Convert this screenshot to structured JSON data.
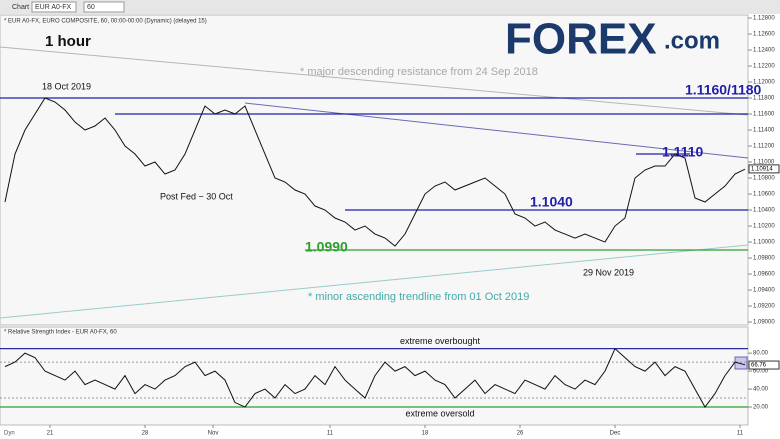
{
  "toolbar": {
    "tab": "Chart",
    "symbol": "EUR A0-FX",
    "interval": "60",
    "corner": "Dyn"
  },
  "logo": "FOREX",
  "logo_suffix": ".com",
  "chart_data": [
    {
      "type": "line",
      "title": "* EUR A0-FX, EURO COMPOSITE, 60, 00:00-00:00 (Dynamic) (delayed 15)",
      "timeframe": "1 hour",
      "annotations": [
        "18 Oct 2019",
        "Post Fed ~ 30 Oct",
        "* major descending resistance from 24 Sep 2018",
        "* minor ascending trendline from 01 Oct 2019",
        "29 Nov 2019"
      ],
      "series": [
        {
          "color": "#111111",
          "values": [
            1.105,
            1.111,
            1.114,
            1.116,
            1.118,
            1.1175,
            1.1165,
            1.115,
            1.114,
            1.1145,
            1.1155,
            1.114,
            1.112,
            1.111,
            1.1095,
            1.11,
            1.1085,
            1.109,
            1.111,
            1.114,
            1.117,
            1.116,
            1.1165,
            1.116,
            1.117,
            1.114,
            1.111,
            1.108,
            1.1075,
            1.1065,
            1.106,
            1.1045,
            1.104,
            1.103,
            1.1025,
            1.1015,
            1.102,
            1.101,
            1.1005,
            1.0995,
            1.101,
            1.1035,
            1.106,
            1.107,
            1.1075,
            1.1065,
            1.107,
            1.1075,
            1.108,
            1.107,
            1.106,
            1.1035,
            1.103,
            1.102,
            1.1025,
            1.1015,
            1.101,
            1.1005,
            1.101,
            1.1005,
            1.1,
            1.102,
            1.103,
            1.108,
            1.109,
            1.1095,
            1.1095,
            1.111,
            1.1105,
            1.1055,
            1.105,
            1.106,
            1.107,
            1.1085,
            1.1091
          ]
        }
      ],
      "levels": [
        {
          "label": "1.1160/1180",
          "value": 1.118,
          "color": "#1f1fa8"
        },
        {
          "value": 1.116,
          "color": "#1f1fa8"
        },
        {
          "label": "1.1110",
          "value": 1.111,
          "color": "#1f1fa8"
        },
        {
          "label": "1.1040",
          "value": 1.104,
          "color": "#1f1fa8"
        },
        {
          "label": "1.0990",
          "value": 1.099,
          "color": "#2e9e2e"
        }
      ],
      "last_value": 1.10914,
      "ylim": [
        1.08963,
        1.12825
      ],
      "yticks": [
        {
          "value": 1.128,
          "label": "1.12800"
        },
        {
          "value": 1.126,
          "label": "1.12600"
        },
        {
          "value": 1.124,
          "label": "1.12400"
        },
        {
          "value": 1.122,
          "label": "1.12200"
        },
        {
          "value": 1.12,
          "label": "1.12000"
        },
        {
          "value": 1.118,
          "label": "1.11800"
        },
        {
          "value": 1.116,
          "label": "1.11600"
        },
        {
          "value": 1.114,
          "label": "1.11400"
        },
        {
          "value": 1.112,
          "label": "1.11200"
        },
        {
          "value": 1.11,
          "label": "1.11000"
        },
        {
          "value": 1.108,
          "label": "1.10800"
        },
        {
          "value": 1.106,
          "label": "1.10600"
        },
        {
          "value": 1.104,
          "label": "1.10400"
        },
        {
          "value": 1.102,
          "label": "1.10200"
        },
        {
          "value": 1.1,
          "label": "1.10000"
        },
        {
          "value": 1.098,
          "label": "1.09800"
        },
        {
          "value": 1.096,
          "label": "1.09600"
        },
        {
          "value": 1.094,
          "label": "1.09400"
        },
        {
          "value": 1.092,
          "label": "1.09200"
        },
        {
          "value": 1.09,
          "label": "1.09000"
        }
      ]
    },
    {
      "type": "line",
      "title": "* Relative Strength Index - EUR A0-FX, 60",
      "series": [
        {
          "color": "#111111",
          "values": [
            65,
            70,
            80,
            75,
            60,
            55,
            50,
            60,
            45,
            50,
            45,
            40,
            55,
            35,
            45,
            40,
            50,
            55,
            65,
            70,
            55,
            60,
            50,
            25,
            20,
            35,
            40,
            30,
            45,
            35,
            40,
            55,
            45,
            65,
            50,
            40,
            30,
            55,
            70,
            60,
            65,
            55,
            60,
            50,
            45,
            30,
            40,
            50,
            35,
            45,
            40,
            35,
            50,
            45,
            40,
            55,
            45,
            40,
            50,
            45,
            60,
            85,
            75,
            65,
            60,
            70,
            55,
            65,
            60,
            40,
            20,
            35,
            55,
            70,
            67
          ]
        }
      ],
      "levels": [
        {
          "label": "extreme overbought",
          "value": 85,
          "color": "#2a2aa0"
        },
        {
          "label": "extreme oversold",
          "value": 20,
          "color": "#2e9e2e"
        }
      ],
      "ref_levels": [
        70,
        30
      ],
      "last_value": 66.76,
      "ylim": [
        0,
        108
      ],
      "yticks": [
        {
          "value": 80,
          "label": "80.00"
        },
        {
          "value": 60,
          "label": "60.00"
        },
        {
          "value": 40,
          "label": "40.00"
        },
        {
          "value": 20,
          "label": "20.00"
        }
      ],
      "xticks": [
        {
          "value": 4.5,
          "label": "21"
        },
        {
          "value": 14,
          "label": "28"
        },
        {
          "value": 20.8,
          "label": "Nov"
        },
        {
          "value": 32.5,
          "label": "11"
        },
        {
          "value": 42,
          "label": "18"
        },
        {
          "value": 51.5,
          "label": "26"
        },
        {
          "value": 61,
          "label": "Dec"
        },
        {
          "value": 73.5,
          "label": "11"
        }
      ]
    }
  ]
}
